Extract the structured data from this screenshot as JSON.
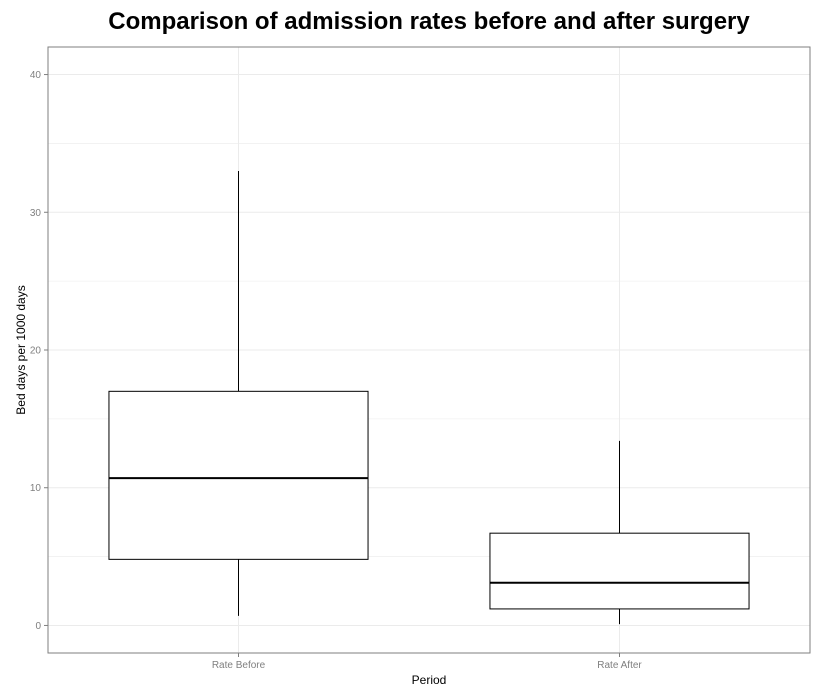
{
  "chart_data": {
    "type": "box",
    "title": "Comparison of admission rates before and after surgery",
    "xlabel": "Period",
    "ylabel": "Bed days per 1000 days",
    "ylim": [
      -2,
      42
    ],
    "y_ticks": [
      0,
      10,
      20,
      30,
      40
    ],
    "grid": true,
    "colors": {
      "box_fill": "#ffffff",
      "box_stroke": "#000000",
      "grid": "#ebebeb",
      "panel_border": "#7f7f7f"
    },
    "categories": [
      "Rate Before",
      "Rate After"
    ],
    "boxes": [
      {
        "category": "Rate Before",
        "min": 0.7,
        "q1": 4.8,
        "median": 10.7,
        "q3": 17.0,
        "max": 33.0
      },
      {
        "category": "Rate After",
        "min": 0.1,
        "q1": 1.2,
        "median": 3.1,
        "q3": 6.7,
        "max": 13.4
      }
    ]
  }
}
